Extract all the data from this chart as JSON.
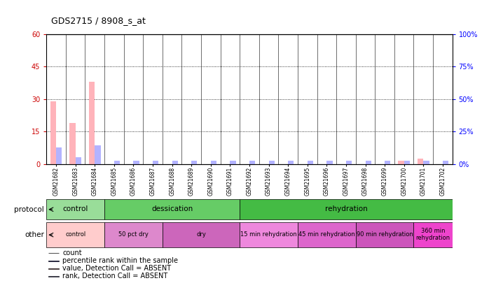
{
  "title": "GDS2715 / 8908_s_at",
  "samples": [
    "GSM21682",
    "GSM21683",
    "GSM21684",
    "GSM21685",
    "GSM21686",
    "GSM21687",
    "GSM21688",
    "GSM21689",
    "GSM21690",
    "GSM21691",
    "GSM21692",
    "GSM21693",
    "GSM21694",
    "GSM21695",
    "GSM21696",
    "GSM21697",
    "GSM21698",
    "GSM21699",
    "GSM21700",
    "GSM21701",
    "GSM21702"
  ],
  "values_absent": [
    29.0,
    19.0,
    38.0,
    0,
    0,
    0,
    0,
    0,
    0,
    0,
    0,
    0,
    0,
    0,
    0,
    0,
    0,
    0,
    1.5,
    2.5,
    0
  ],
  "rank_absent": [
    13.0,
    5.5,
    14.5,
    2.5,
    2.5,
    2.5,
    2.5,
    2.5,
    2.5,
    2.5,
    2.5,
    2.5,
    2.5,
    2.5,
    2.5,
    2.5,
    2.5,
    2.5,
    2.5,
    2.5,
    2.5
  ],
  "ylim_left": [
    0,
    60
  ],
  "ylim_right": [
    0,
    100
  ],
  "yticks_left": [
    0,
    15,
    30,
    45,
    60
  ],
  "yticks_right": [
    0,
    25,
    50,
    75,
    100
  ],
  "ytick_labels_left": [
    "0",
    "15",
    "30",
    "45",
    "60"
  ],
  "ytick_labels_right": [
    "0%",
    "25%",
    "50%",
    "75%",
    "100%"
  ],
  "color_value_absent": "#ffb3ba",
  "color_rank_absent": "#b3b3ff",
  "color_count": "#cc0000",
  "color_rank": "#3333cc",
  "protocol_groups": [
    {
      "label": "control",
      "start": 0,
      "end": 3,
      "color": "#99dd99"
    },
    {
      "label": "dessication",
      "start": 3,
      "end": 10,
      "color": "#66cc66"
    },
    {
      "label": "rehydration",
      "start": 10,
      "end": 21,
      "color": "#44bb44"
    }
  ],
  "other_groups": [
    {
      "label": "control",
      "start": 0,
      "end": 3,
      "color": "#ffcccc"
    },
    {
      "label": "50 pct dry",
      "start": 3,
      "end": 6,
      "color": "#dd88cc"
    },
    {
      "label": "dry",
      "start": 6,
      "end": 10,
      "color": "#cc66bb"
    },
    {
      "label": "15 min rehydration",
      "start": 10,
      "end": 13,
      "color": "#ee88dd"
    },
    {
      "label": "45 min rehydration",
      "start": 13,
      "end": 16,
      "color": "#dd66cc"
    },
    {
      "label": "90 min rehydration",
      "start": 16,
      "end": 19,
      "color": "#cc55bb"
    },
    {
      "label": "360 min\nrehydration",
      "start": 19,
      "end": 21,
      "color": "#ee44cc"
    }
  ],
  "dotted_yticks": [
    15,
    30,
    45
  ]
}
